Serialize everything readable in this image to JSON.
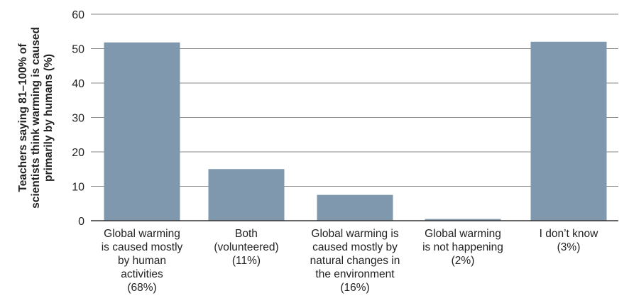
{
  "chart_data": {
    "type": "bar",
    "ylabel_lines": [
      "Teachers saying 81–100% of",
      "scientists think warming is caused",
      "primarily by humans (%)"
    ],
    "ylim": [
      0,
      60
    ],
    "yticks": [
      0,
      10,
      20,
      30,
      40,
      50,
      60
    ],
    "grid": true,
    "categories": [
      "Global warming is caused mostly by human activities (68%)",
      "Both (volunteered) (11%)",
      "Global warming is caused mostly by natural changes in the environment (16%)",
      "Global warming is not happening (2%)",
      "I don’t know (3%)"
    ],
    "category_lines": [
      [
        "Global warming",
        "is caused mostly",
        "by human",
        "activities",
        "(68%)"
      ],
      [
        "Both",
        "(volunteered)",
        "(11%)"
      ],
      [
        "Global warming is",
        "caused mostly by",
        "natural changes in",
        "the environment",
        "(16%)"
      ],
      [
        "Global warming",
        "is not happening",
        "(2%)"
      ],
      [
        "I don’t know",
        "(3%)"
      ]
    ],
    "values": [
      51.8,
      15,
      7.5,
      0.5,
      52
    ],
    "colors": {
      "bar": "#7f98ad",
      "grid": "#8a8a8a",
      "axis": "#333333"
    }
  }
}
